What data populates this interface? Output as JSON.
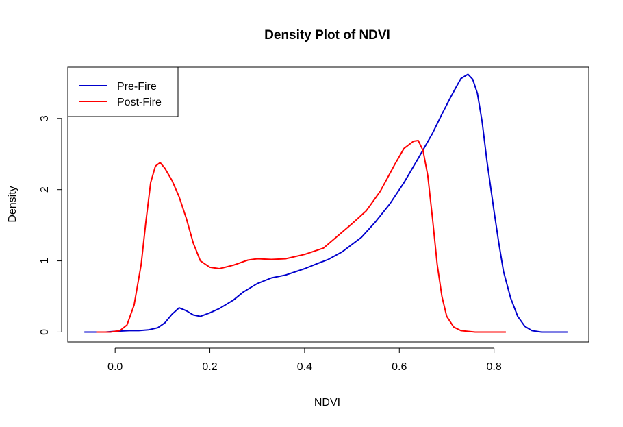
{
  "chart_data": {
    "type": "line",
    "title": "Density Plot of NDVI",
    "xlabel": "NDVI",
    "ylabel": "Density",
    "xlim": [
      -0.1,
      1.0
    ],
    "ylim": [
      -0.14,
      3.72
    ],
    "x_ticks": [
      0.0,
      0.2,
      0.4,
      0.6,
      0.8
    ],
    "x_tick_labels": [
      "0.0",
      "0.2",
      "0.4",
      "0.6",
      "0.8"
    ],
    "y_ticks": [
      0,
      1,
      2,
      3
    ],
    "y_tick_labels": [
      "0",
      "1",
      "2",
      "3"
    ],
    "zero_line": true,
    "grid": false,
    "legend_position": "top-left",
    "series": [
      {
        "name": "Pre-Fire",
        "color": "#0000cd",
        "x": [
          -0.065,
          -0.02,
          0.0,
          0.03,
          0.05,
          0.07,
          0.09,
          0.105,
          0.12,
          0.135,
          0.15,
          0.165,
          0.18,
          0.2,
          0.22,
          0.25,
          0.27,
          0.3,
          0.33,
          0.36,
          0.4,
          0.43,
          0.45,
          0.48,
          0.52,
          0.55,
          0.58,
          0.61,
          0.64,
          0.67,
          0.69,
          0.71,
          0.73,
          0.745,
          0.755,
          0.765,
          0.775,
          0.785,
          0.8,
          0.81,
          0.82,
          0.835,
          0.85,
          0.865,
          0.88,
          0.9,
          0.955
        ],
        "y": [
          0.0,
          0.0,
          0.01,
          0.02,
          0.02,
          0.03,
          0.06,
          0.13,
          0.25,
          0.34,
          0.3,
          0.24,
          0.22,
          0.27,
          0.33,
          0.45,
          0.56,
          0.68,
          0.76,
          0.8,
          0.89,
          0.97,
          1.02,
          1.13,
          1.33,
          1.55,
          1.8,
          2.1,
          2.44,
          2.79,
          3.06,
          3.32,
          3.56,
          3.62,
          3.55,
          3.35,
          2.95,
          2.4,
          1.7,
          1.25,
          0.85,
          0.48,
          0.22,
          0.08,
          0.02,
          0.0,
          0.0
        ]
      },
      {
        "name": "Post-Fire",
        "color": "#ff0000",
        "x": [
          -0.04,
          -0.01,
          0.01,
          0.025,
          0.04,
          0.055,
          0.065,
          0.075,
          0.085,
          0.095,
          0.105,
          0.12,
          0.135,
          0.15,
          0.165,
          0.18,
          0.2,
          0.22,
          0.25,
          0.28,
          0.3,
          0.33,
          0.36,
          0.4,
          0.44,
          0.47,
          0.5,
          0.53,
          0.56,
          0.59,
          0.61,
          0.63,
          0.64,
          0.65,
          0.66,
          0.67,
          0.68,
          0.69,
          0.7,
          0.715,
          0.73,
          0.76,
          0.825
        ],
        "y": [
          0.0,
          0.0,
          0.02,
          0.1,
          0.38,
          0.95,
          1.55,
          2.1,
          2.33,
          2.38,
          2.3,
          2.13,
          1.9,
          1.6,
          1.25,
          1.0,
          0.91,
          0.89,
          0.94,
          1.01,
          1.03,
          1.02,
          1.03,
          1.09,
          1.18,
          1.35,
          1.52,
          1.7,
          1.98,
          2.35,
          2.58,
          2.68,
          2.69,
          2.55,
          2.2,
          1.6,
          0.95,
          0.5,
          0.22,
          0.07,
          0.02,
          0.0,
          0.0
        ]
      }
    ]
  }
}
